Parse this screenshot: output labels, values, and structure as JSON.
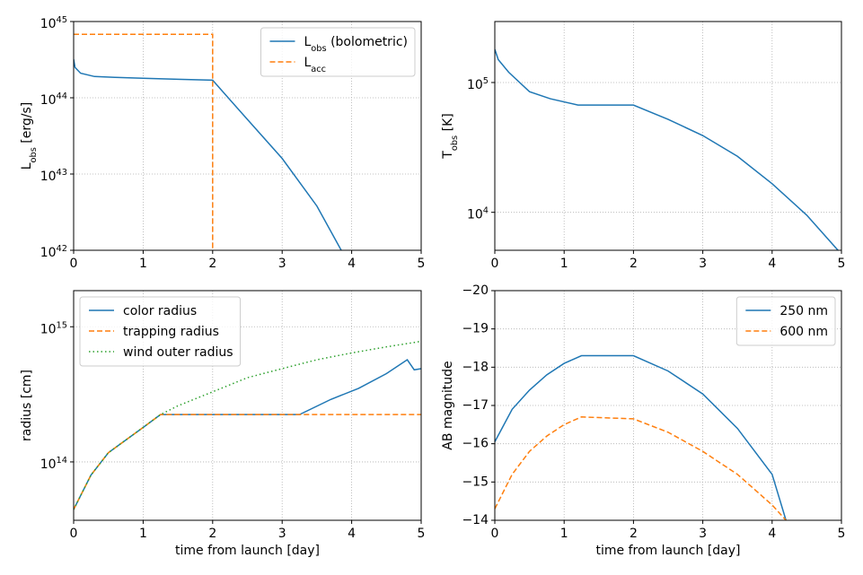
{
  "chart_data": [
    {
      "type": "line",
      "ylabel": "L_{obs} [erg/s]",
      "yscale": "log",
      "grid": true,
      "legend": "upper right",
      "xlim": [
        0,
        5
      ],
      "xticks": [
        0,
        1,
        2,
        3,
        4,
        5
      ],
      "ylim": [
        1e+42,
        1e+45
      ],
      "yticks": [
        {
          "value": 1e+42,
          "label": "10^{42}"
        },
        {
          "value": 1e+43,
          "label": "10^{43}"
        },
        {
          "value": 1e+44,
          "label": "10^{44}"
        },
        {
          "value": 1e+45,
          "label": "10^{45}"
        }
      ],
      "series": [
        {
          "name": "L_{obs} (bolometric)",
          "color": "#1f77b4",
          "style": "solid",
          "x": [
            0,
            0.02,
            0.1,
            0.3,
            0.6,
            1,
            1.5,
            2,
            2.5,
            3,
            3.5,
            3.85
          ],
          "values": [
            3.2e+44,
            2.5e+44,
            2.1e+44,
            1.9e+44,
            1.85e+44,
            1.8e+44,
            1.75e+44,
            1.7e+44,
            5.2e+43,
            1.6e+43,
            3.8e+42,
            1e+42
          ]
        },
        {
          "name": "L_{acc}",
          "color": "#ff7f0e",
          "style": "dashed",
          "x": [
            0,
            2,
            2
          ],
          "values": [
            6.8e+44,
            6.8e+44,
            1e+42
          ]
        }
      ]
    },
    {
      "type": "line",
      "ylabel": "T_{obs} [K]",
      "yscale": "log",
      "grid": true,
      "xlim": [
        0,
        5
      ],
      "xticks": [
        0,
        1,
        2,
        3,
        4,
        5
      ],
      "ylim": [
        5100,
        295000
      ],
      "yticks": [
        {
          "value": 10000,
          "label": "10^{4}"
        },
        {
          "value": 100000,
          "label": "10^{5}"
        }
      ],
      "series": [
        {
          "name": "T_{obs}",
          "color": "#1f77b4",
          "style": "solid",
          "x": [
            0,
            0.05,
            0.2,
            0.5,
            0.8,
            1.2,
            2,
            2.5,
            3,
            3.5,
            4,
            4.5,
            4.95
          ],
          "values": [
            180000,
            150000,
            120000,
            85000,
            75000,
            67000,
            67000,
            52000,
            39000,
            27000,
            16600,
            9500,
            5100
          ]
        }
      ]
    },
    {
      "type": "line",
      "xlabel": "time from launch [day]",
      "ylabel": "radius [cm]",
      "yscale": "log",
      "grid": true,
      "legend": "upper left",
      "xlim": [
        0,
        5
      ],
      "xticks": [
        0,
        1,
        2,
        3,
        4,
        5
      ],
      "ylim": [
        37000000000000.0,
        1850000000000000.0
      ],
      "yticks": [
        {
          "value": 100000000000000.0,
          "label": "10^{14}"
        },
        {
          "value": 1000000000000000.0,
          "label": "10^{15}"
        }
      ],
      "series": [
        {
          "name": "color radius",
          "color": "#1f77b4",
          "style": "solid",
          "x": [
            0,
            0.25,
            0.5,
            1,
            1.25,
            3.25,
            3.7,
            4.1,
            4.5,
            4.8,
            4.9,
            5
          ],
          "values": [
            44500000000000.0,
            80000000000000.0,
            117000000000000.0,
            180000000000000.0,
            224000000000000.0,
            224000000000000.0,
            290000000000000.0,
            350000000000000.0,
            450000000000000.0,
            570000000000000.0,
            480000000000000.0,
            490000000000000.0
          ]
        },
        {
          "name": "trapping radius",
          "color": "#ff7f0e",
          "style": "dashed",
          "x": [
            0,
            0.25,
            0.5,
            1,
            1.25,
            5
          ],
          "values": [
            44500000000000.0,
            80000000000000.0,
            117000000000000.0,
            180000000000000.0,
            224000000000000.0,
            224000000000000.0
          ]
        },
        {
          "name": "wind outer radius",
          "color": "#2ca02c",
          "style": "dotted",
          "x": [
            0,
            0.25,
            0.5,
            1,
            1.25,
            1.5,
            2,
            2.5,
            3,
            3.5,
            4,
            4.5,
            5
          ],
          "values": [
            44500000000000.0,
            80000000000000.0,
            117000000000000.0,
            180000000000000.0,
            224000000000000.0,
            260000000000000.0,
            330000000000000.0,
            420000000000000.0,
            490000000000000.0,
            570000000000000.0,
            640000000000000.0,
            710000000000000.0,
            780000000000000.0
          ]
        }
      ]
    },
    {
      "type": "line",
      "xlabel": "time from launch [day]",
      "ylabel": "AB magnitude",
      "yscale": "linear",
      "grid": true,
      "legend": "upper right",
      "xlim": [
        0,
        5
      ],
      "xticks": [
        0,
        1,
        2,
        3,
        4,
        5
      ],
      "ylim": [
        -14,
        -20
      ],
      "yticks": [
        {
          "value": -20,
          "label": "−20"
        },
        {
          "value": -19,
          "label": "−19"
        },
        {
          "value": -18,
          "label": "−18"
        },
        {
          "value": -17,
          "label": "−17"
        },
        {
          "value": -16,
          "label": "−16"
        },
        {
          "value": -15,
          "label": "−15"
        },
        {
          "value": -14,
          "label": "−14"
        }
      ],
      "series": [
        {
          "name": "250 nm",
          "color": "#1f77b4",
          "style": "solid",
          "x": [
            0,
            0.25,
            0.5,
            0.75,
            1,
            1.25,
            2,
            2.5,
            3,
            3.5,
            4,
            4.2
          ],
          "values": [
            -16.05,
            -16.9,
            -17.4,
            -17.8,
            -18.1,
            -18.3,
            -18.3,
            -17.9,
            -17.3,
            -16.4,
            -15.2,
            -14
          ]
        },
        {
          "name": "600 nm",
          "color": "#ff7f0e",
          "style": "dashed",
          "x": [
            0,
            0.25,
            0.5,
            0.75,
            1,
            1.25,
            2,
            2.5,
            3,
            3.5,
            4,
            4.2
          ],
          "values": [
            -14.3,
            -15.2,
            -15.8,
            -16.2,
            -16.5,
            -16.7,
            -16.65,
            -16.3,
            -15.8,
            -15.2,
            -14.4,
            -14
          ]
        }
      ]
    }
  ]
}
